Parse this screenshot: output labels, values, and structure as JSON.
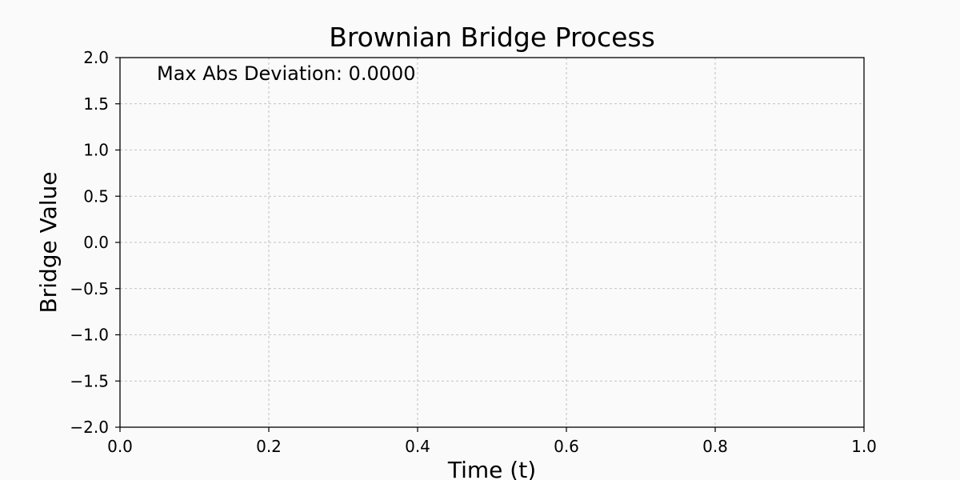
{
  "chart_data": {
    "type": "line",
    "title": "Brownian Bridge Process",
    "xlabel": "Time (t)",
    "ylabel": "Bridge Value",
    "xlim": [
      0.0,
      1.0
    ],
    "ylim": [
      -2.0,
      2.0
    ],
    "xticks": [
      0.0,
      0.2,
      0.4,
      0.6,
      0.8,
      1.0
    ],
    "xtick_labels": [
      "0.0",
      "0.2",
      "0.4",
      "0.6",
      "0.8",
      "1.0"
    ],
    "yticks": [
      2.0,
      1.5,
      1.0,
      0.5,
      0.0,
      -0.5,
      -1.0,
      -1.5,
      -2.0
    ],
    "ytick_labels": [
      "2.0",
      "1.5",
      "1.0",
      "0.5",
      "0.0",
      "−0.5",
      "−1.0",
      "−1.5",
      "−2.0"
    ],
    "grid": true,
    "series": [],
    "annotation": "Max Abs Deviation: 0.0000"
  }
}
